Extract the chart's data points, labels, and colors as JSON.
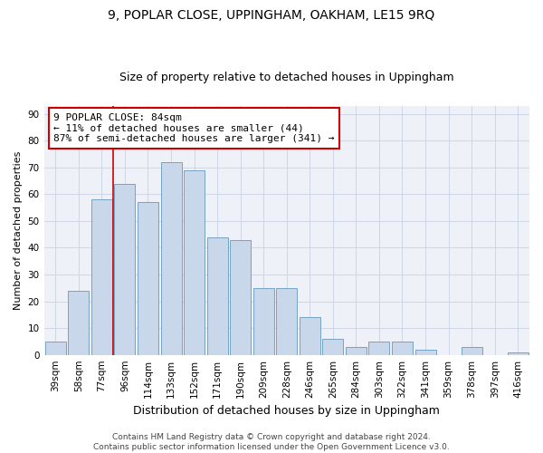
{
  "title": "9, POPLAR CLOSE, UPPINGHAM, OAKHAM, LE15 9RQ",
  "subtitle": "Size of property relative to detached houses in Uppingham",
  "xlabel": "Distribution of detached houses by size in Uppingham",
  "ylabel": "Number of detached properties",
  "categories": [
    "39sqm",
    "58sqm",
    "77sqm",
    "96sqm",
    "114sqm",
    "133sqm",
    "152sqm",
    "171sqm",
    "190sqm",
    "209sqm",
    "228sqm",
    "246sqm",
    "265sqm",
    "284sqm",
    "303sqm",
    "322sqm",
    "341sqm",
    "359sqm",
    "378sqm",
    "397sqm",
    "416sqm"
  ],
  "values": [
    5,
    24,
    58,
    64,
    57,
    72,
    69,
    44,
    43,
    25,
    25,
    14,
    6,
    3,
    5,
    5,
    2,
    0,
    3,
    0,
    1
  ],
  "bar_color": "#c8d8ea",
  "bar_edge_color": "#6699bb",
  "vline_x_index": 3,
  "vline_color": "#cc0000",
  "annotation_line1": "9 POPLAR CLOSE: 84sqm",
  "annotation_line2": "← 11% of detached houses are smaller (44)",
  "annotation_line3": "87% of semi-detached houses are larger (341) →",
  "annotation_box_color": "#ffffff",
  "annotation_box_edge": "#cc0000",
  "ylim": [
    0,
    93
  ],
  "yticks": [
    0,
    10,
    20,
    30,
    40,
    50,
    60,
    70,
    80,
    90
  ],
  "grid_color": "#d0d8e8",
  "background_color": "#eef2f8",
  "footer": "Contains HM Land Registry data © Crown copyright and database right 2024.\nContains public sector information licensed under the Open Government Licence v3.0.",
  "title_fontsize": 10,
  "subtitle_fontsize": 9,
  "xlabel_fontsize": 9,
  "ylabel_fontsize": 8,
  "tick_fontsize": 7.5,
  "annotation_fontsize": 8,
  "footer_fontsize": 6.5
}
